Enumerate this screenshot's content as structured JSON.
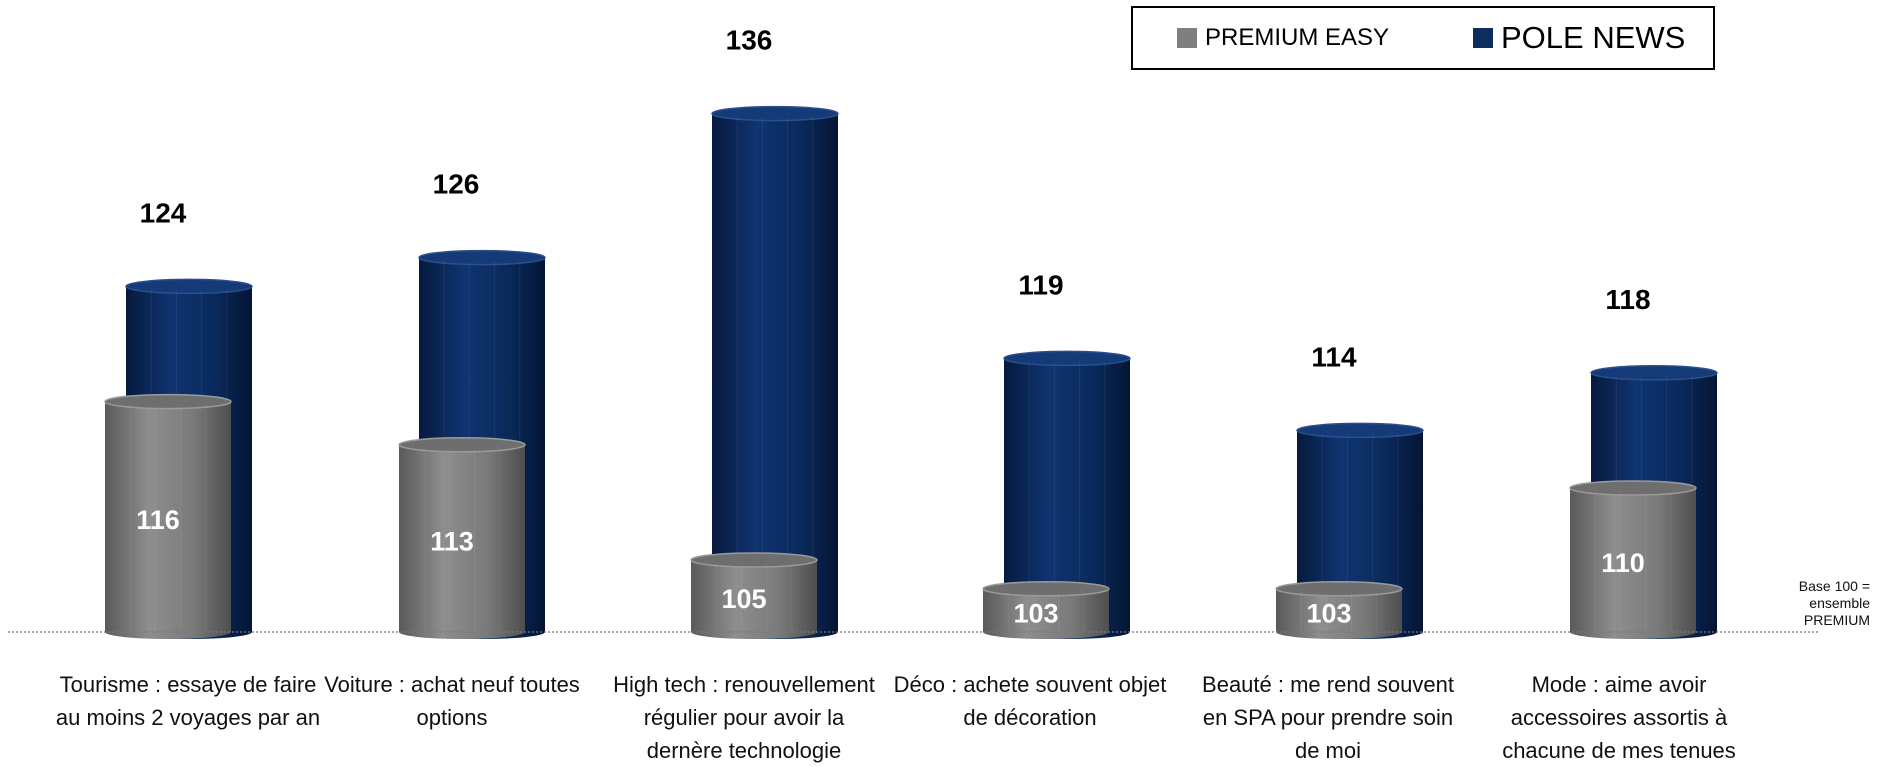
{
  "chart_data": {
    "type": "bar",
    "categories": [
      "Tourisme : essaye de faire au moins 2 voyages par an",
      "Voiture : achat neuf toutes options",
      "High tech : renouvellement régulier pour avoir la dernère technologie",
      "Déco : achete souvent objet de décoration",
      "Beauté : me rend souvent en SPA pour prendre soin de moi",
      "Mode : aime avoir accessoires assortis à chacune de mes tenues"
    ],
    "series": [
      {
        "name": "PREMIUM EASY",
        "color": "#7f7f7f",
        "values": [
          116,
          113,
          105,
          103,
          103,
          110
        ]
      },
      {
        "name": "POLE NEWS",
        "color": "#0d2d5e",
        "values": [
          124,
          126,
          136,
          119,
          114,
          118
        ]
      }
    ],
    "baseline": 100,
    "baseline_note": [
      "Base 100 =",
      "ensemble",
      "PREMIUM"
    ],
    "ylim": [
      100,
      140
    ],
    "grid": false,
    "legend_position": "top-right"
  }
}
